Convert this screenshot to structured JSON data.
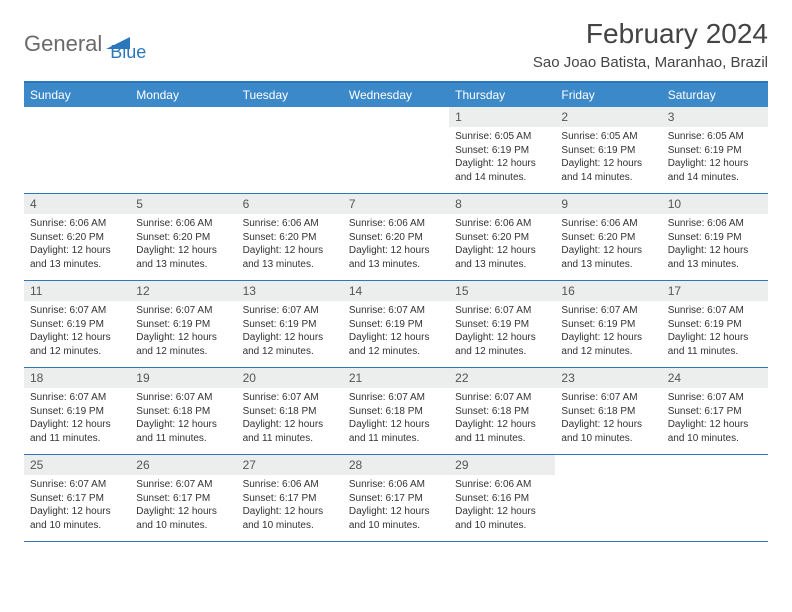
{
  "logo": {
    "part1": "General",
    "part2": "Blue"
  },
  "title": "February 2024",
  "location": "Sao Joao Batista, Maranhao, Brazil",
  "colors": {
    "header_bg": "#3b89c9",
    "border": "#2a77bb",
    "daynum_bg": "#eceded",
    "text": "#333333",
    "title_text": "#444444",
    "logo_gray": "#6a6a6a",
    "logo_blue": "#2a77bb",
    "background": "#ffffff"
  },
  "typography": {
    "title_fontsize": 28,
    "subtitle_fontsize": 15,
    "dow_fontsize": 12,
    "daynum_fontsize": 12,
    "info_fontsize": 10
  },
  "days_of_week": [
    "Sunday",
    "Monday",
    "Tuesday",
    "Wednesday",
    "Thursday",
    "Friday",
    "Saturday"
  ],
  "weeks": [
    [
      null,
      null,
      null,
      null,
      {
        "n": "1",
        "sr": "Sunrise: 6:05 AM",
        "ss": "Sunset: 6:19 PM",
        "dl": "Daylight: 12 hours and 14 minutes."
      },
      {
        "n": "2",
        "sr": "Sunrise: 6:05 AM",
        "ss": "Sunset: 6:19 PM",
        "dl": "Daylight: 12 hours and 14 minutes."
      },
      {
        "n": "3",
        "sr": "Sunrise: 6:05 AM",
        "ss": "Sunset: 6:19 PM",
        "dl": "Daylight: 12 hours and 14 minutes."
      }
    ],
    [
      {
        "n": "4",
        "sr": "Sunrise: 6:06 AM",
        "ss": "Sunset: 6:20 PM",
        "dl": "Daylight: 12 hours and 13 minutes."
      },
      {
        "n": "5",
        "sr": "Sunrise: 6:06 AM",
        "ss": "Sunset: 6:20 PM",
        "dl": "Daylight: 12 hours and 13 minutes."
      },
      {
        "n": "6",
        "sr": "Sunrise: 6:06 AM",
        "ss": "Sunset: 6:20 PM",
        "dl": "Daylight: 12 hours and 13 minutes."
      },
      {
        "n": "7",
        "sr": "Sunrise: 6:06 AM",
        "ss": "Sunset: 6:20 PM",
        "dl": "Daylight: 12 hours and 13 minutes."
      },
      {
        "n": "8",
        "sr": "Sunrise: 6:06 AM",
        "ss": "Sunset: 6:20 PM",
        "dl": "Daylight: 12 hours and 13 minutes."
      },
      {
        "n": "9",
        "sr": "Sunrise: 6:06 AM",
        "ss": "Sunset: 6:20 PM",
        "dl": "Daylight: 12 hours and 13 minutes."
      },
      {
        "n": "10",
        "sr": "Sunrise: 6:06 AM",
        "ss": "Sunset: 6:19 PM",
        "dl": "Daylight: 12 hours and 13 minutes."
      }
    ],
    [
      {
        "n": "11",
        "sr": "Sunrise: 6:07 AM",
        "ss": "Sunset: 6:19 PM",
        "dl": "Daylight: 12 hours and 12 minutes."
      },
      {
        "n": "12",
        "sr": "Sunrise: 6:07 AM",
        "ss": "Sunset: 6:19 PM",
        "dl": "Daylight: 12 hours and 12 minutes."
      },
      {
        "n": "13",
        "sr": "Sunrise: 6:07 AM",
        "ss": "Sunset: 6:19 PM",
        "dl": "Daylight: 12 hours and 12 minutes."
      },
      {
        "n": "14",
        "sr": "Sunrise: 6:07 AM",
        "ss": "Sunset: 6:19 PM",
        "dl": "Daylight: 12 hours and 12 minutes."
      },
      {
        "n": "15",
        "sr": "Sunrise: 6:07 AM",
        "ss": "Sunset: 6:19 PM",
        "dl": "Daylight: 12 hours and 12 minutes."
      },
      {
        "n": "16",
        "sr": "Sunrise: 6:07 AM",
        "ss": "Sunset: 6:19 PM",
        "dl": "Daylight: 12 hours and 12 minutes."
      },
      {
        "n": "17",
        "sr": "Sunrise: 6:07 AM",
        "ss": "Sunset: 6:19 PM",
        "dl": "Daylight: 12 hours and 11 minutes."
      }
    ],
    [
      {
        "n": "18",
        "sr": "Sunrise: 6:07 AM",
        "ss": "Sunset: 6:19 PM",
        "dl": "Daylight: 12 hours and 11 minutes."
      },
      {
        "n": "19",
        "sr": "Sunrise: 6:07 AM",
        "ss": "Sunset: 6:18 PM",
        "dl": "Daylight: 12 hours and 11 minutes."
      },
      {
        "n": "20",
        "sr": "Sunrise: 6:07 AM",
        "ss": "Sunset: 6:18 PM",
        "dl": "Daylight: 12 hours and 11 minutes."
      },
      {
        "n": "21",
        "sr": "Sunrise: 6:07 AM",
        "ss": "Sunset: 6:18 PM",
        "dl": "Daylight: 12 hours and 11 minutes."
      },
      {
        "n": "22",
        "sr": "Sunrise: 6:07 AM",
        "ss": "Sunset: 6:18 PM",
        "dl": "Daylight: 12 hours and 11 minutes."
      },
      {
        "n": "23",
        "sr": "Sunrise: 6:07 AM",
        "ss": "Sunset: 6:18 PM",
        "dl": "Daylight: 12 hours and 10 minutes."
      },
      {
        "n": "24",
        "sr": "Sunrise: 6:07 AM",
        "ss": "Sunset: 6:17 PM",
        "dl": "Daylight: 12 hours and 10 minutes."
      }
    ],
    [
      {
        "n": "25",
        "sr": "Sunrise: 6:07 AM",
        "ss": "Sunset: 6:17 PM",
        "dl": "Daylight: 12 hours and 10 minutes."
      },
      {
        "n": "26",
        "sr": "Sunrise: 6:07 AM",
        "ss": "Sunset: 6:17 PM",
        "dl": "Daylight: 12 hours and 10 minutes."
      },
      {
        "n": "27",
        "sr": "Sunrise: 6:06 AM",
        "ss": "Sunset: 6:17 PM",
        "dl": "Daylight: 12 hours and 10 minutes."
      },
      {
        "n": "28",
        "sr": "Sunrise: 6:06 AM",
        "ss": "Sunset: 6:17 PM",
        "dl": "Daylight: 12 hours and 10 minutes."
      },
      {
        "n": "29",
        "sr": "Sunrise: 6:06 AM",
        "ss": "Sunset: 6:16 PM",
        "dl": "Daylight: 12 hours and 10 minutes."
      },
      null,
      null
    ]
  ]
}
